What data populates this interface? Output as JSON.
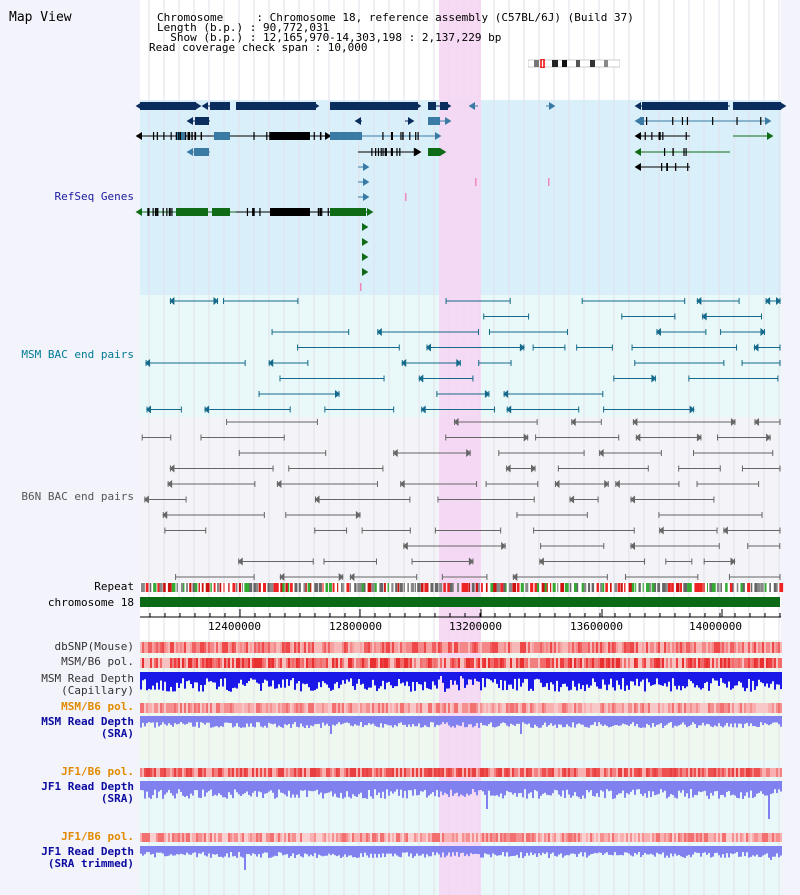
{
  "title": "Map View",
  "header": {
    "chromosome_line": "Chromosome     : Chromosome 18, reference assembly (C57BL/6J) (Build 37)",
    "length_line": "Length (b.p.) : 90,772,031",
    "show_line": "  Show (b.p.) : 12,165,970-14,303,198 : 2,137,229 bp",
    "coverage_line": "Read coverage check span : 10,000"
  },
  "tracks": {
    "refseq": "RefSeq Genes",
    "msm_bac": "MSM BAC end pairs",
    "b6n_bac": "B6N BAC end pairs",
    "repeat": "Repeat",
    "chromosome": "chromosome 18",
    "dbsnp": "dbSNP(Mouse)",
    "msm_b6_pol": "MSM/B6 pol.",
    "msm_depth_cap_1": "MSM Read Depth",
    "msm_depth_cap_2": "(Capillary)",
    "msm_b6_pol_2": "MSM/B6 pol.",
    "msm_depth_sra_1": "MSM Read Depth",
    "msm_depth_sra_2": "(SRA)",
    "jf1_b6_pol": "JF1/B6 pol.",
    "jf1_depth_sra_1": "JF1 Read Depth",
    "jf1_depth_sra_2": "(SRA)",
    "jf1_b6_pol_2": "JF1/B6 pol.",
    "jf1_depth_trim_1": "JF1 Read Depth",
    "jf1_depth_trim_2": "(SRA trimmed)"
  },
  "axis": {
    "ticks": [
      "12400000",
      "12800000",
      "13200000",
      "13600000",
      "14000000"
    ]
  },
  "colors": {
    "refseq_bg": "#d9eff9",
    "msm_bg": "#e9f8f8",
    "b6n_bg": "#f3f3f8",
    "highlight": "#f5d6f3",
    "gene_dark": "#0b2d5e",
    "gene_mid": "#3a7ba6",
    "gene_green": "#0f6b16",
    "msm_line": "#146a8a",
    "b6n_line": "#666666",
    "chrom": "#0a6a16",
    "depth_blue": "#1a18e8",
    "depth_light": "#8080ee",
    "msm_label": "#007b93",
    "orange_label": "#e08a00",
    "navy_label": "#0a0aa0",
    "link_label": "#1a1aa0"
  }
}
